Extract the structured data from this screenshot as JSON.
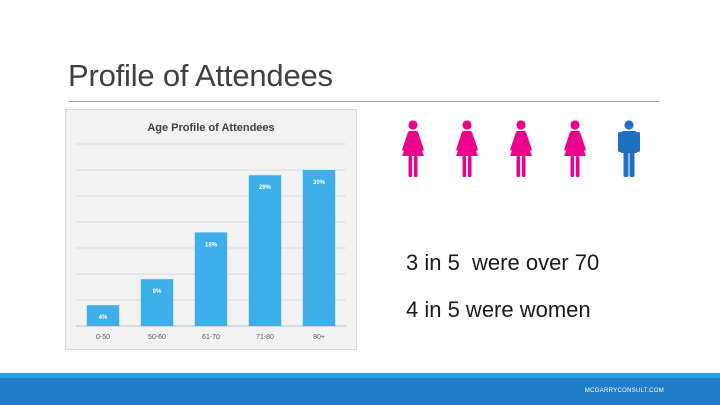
{
  "slide": {
    "title": "Profile of Attendees",
    "stats": [
      "3 in 5  were over 70",
      "4 in 5 were women"
    ],
    "footer": "MCGARRYCONSULT.COM"
  },
  "figures": [
    {
      "icon": "female-person-icon",
      "color": "#ec008c"
    },
    {
      "icon": "female-person-icon",
      "color": "#ec008c"
    },
    {
      "icon": "female-person-icon",
      "color": "#ec008c"
    },
    {
      "icon": "female-person-icon",
      "color": "#ec008c"
    },
    {
      "icon": "male-person-icon",
      "color": "#1f6fc5"
    }
  ],
  "colors": {
    "bar": "#3daee9",
    "footer_bar": "#1f7ec6",
    "footer_stripe": "#2b9fd9"
  },
  "chart_data": {
    "type": "bar",
    "title": "Age Profile of Attendees",
    "categories": [
      "0-50",
      "50-60",
      "61-70",
      "71-80",
      "80+"
    ],
    "values": [
      4,
      9,
      18,
      29,
      30
    ],
    "data_labels": [
      "4%",
      "9%",
      "18%",
      "29%",
      "30%"
    ],
    "ylim": [
      0,
      35
    ],
    "grid": true,
    "legend": "none"
  }
}
